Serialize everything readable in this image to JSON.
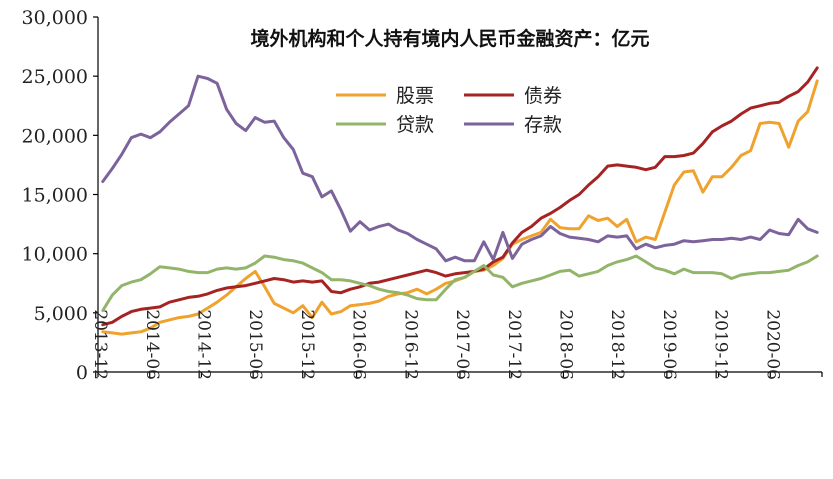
{
  "chart_data": {
    "type": "line",
    "title": "境外机构和个人持有境内人民币金融资产：亿元",
    "ylim": [
      0,
      30000
    ],
    "yticks": [
      0,
      5000,
      10000,
      15000,
      20000,
      25000,
      30000
    ],
    "ytick_labels": [
      "0",
      "5,000",
      "10,000",
      "15,000",
      "20,000",
      "25,000",
      "30,000"
    ],
    "xtick_labels": [
      "2013-12",
      "2014-06",
      "2014-12",
      "2015-06",
      "2015-12",
      "2016-06",
      "2016-12",
      "2017-06",
      "2017-12",
      "2018-06",
      "2018-12",
      "2019-06",
      "2019-12",
      "2020-06"
    ],
    "grid": false,
    "legend_position": "top-center",
    "series": [
      {
        "name": "股票",
        "color": "#F0A22E",
        "values": [
          3400,
          3300,
          3200,
          3300,
          3400,
          3700,
          4200,
          4400,
          4600,
          4700,
          4900,
          5400,
          5900,
          6500,
          7200,
          7900,
          8500,
          7200,
          5800,
          5400,
          5000,
          5600,
          4600,
          5900,
          4900,
          5100,
          5600,
          5700,
          5800,
          6000,
          6400,
          6600,
          6700,
          7000,
          6600,
          7000,
          7500,
          7700,
          8000,
          8500,
          8600,
          9000,
          9600,
          10800,
          11200,
          11500,
          11800,
          12900,
          12200,
          12100,
          12100,
          13200,
          12800,
          13000,
          12300,
          12900,
          11000,
          11400,
          11200,
          13500,
          15800,
          16900,
          17000,
          15200,
          16500,
          16500,
          17300,
          18300,
          18700,
          21000,
          21100,
          21000,
          19000,
          21200,
          22000,
          24600
        ]
      },
      {
        "name": "债券",
        "color": "#A52323",
        "values": [
          4000,
          4200,
          4700,
          5100,
          5300,
          5400,
          5500,
          5900,
          6100,
          6300,
          6400,
          6600,
          6900,
          7100,
          7200,
          7300,
          7500,
          7700,
          7900,
          7800,
          7600,
          7700,
          7600,
          7700,
          6800,
          6700,
          7000,
          7200,
          7500,
          7600,
          7800,
          8000,
          8200,
          8400,
          8600,
          8400,
          8100,
          8300,
          8400,
          8500,
          8700,
          9300,
          9700,
          10900,
          11800,
          12300,
          13000,
          13400,
          13900,
          14500,
          15000,
          15800,
          16500,
          17400,
          17500,
          17400,
          17300,
          17100,
          17300,
          18200,
          18200,
          18300,
          18500,
          19300,
          20300,
          20800,
          21200,
          21800,
          22300,
          22500,
          22700,
          22800,
          23300,
          23700,
          24500,
          25700
        ]
      },
      {
        "name": "贷款",
        "color": "#92B56A",
        "values": [
          5200,
          6500,
          7300,
          7600,
          7800,
          8300,
          8900,
          8800,
          8700,
          8500,
          8400,
          8400,
          8700,
          8800,
          8700,
          8800,
          9200,
          9800,
          9700,
          9500,
          9400,
          9200,
          8800,
          8400,
          7800,
          7800,
          7700,
          7500,
          7300,
          7000,
          6800,
          6700,
          6500,
          6200,
          6100,
          6100,
          7000,
          7800,
          8000,
          8500,
          9000,
          8200,
          8000,
          7200,
          7500,
          7700,
          7900,
          8200,
          8500,
          8600,
          8100,
          8300,
          8500,
          9000,
          9300,
          9500,
          9800,
          9300,
          8800,
          8600,
          8300,
          8700,
          8400,
          8400,
          8400,
          8300,
          7900,
          8200,
          8300,
          8400,
          8400,
          8500,
          8600,
          9000,
          9300,
          9800
        ]
      },
      {
        "name": "存款",
        "color": "#7C639B",
        "values": [
          16100,
          17200,
          18400,
          19800,
          20100,
          19800,
          20300,
          21100,
          21800,
          22500,
          25000,
          24800,
          24400,
          22200,
          21000,
          20400,
          21500,
          21100,
          21200,
          19800,
          18800,
          16800,
          16500,
          14800,
          15300,
          13700,
          11900,
          12700,
          12000,
          12300,
          12500,
          12000,
          11700,
          11200,
          10800,
          10400,
          9400,
          9700,
          9400,
          9400,
          11000,
          9500,
          11800,
          9600,
          10800,
          11200,
          11500,
          12300,
          11700,
          11400,
          11300,
          11200,
          11000,
          11500,
          11400,
          11500,
          10400,
          10800,
          10500,
          10700,
          10800,
          11100,
          11000,
          11100,
          11200,
          11200,
          11300,
          11200,
          11400,
          11200,
          12000,
          11700,
          11600,
          12900,
          12100,
          11800
        ]
      }
    ]
  }
}
